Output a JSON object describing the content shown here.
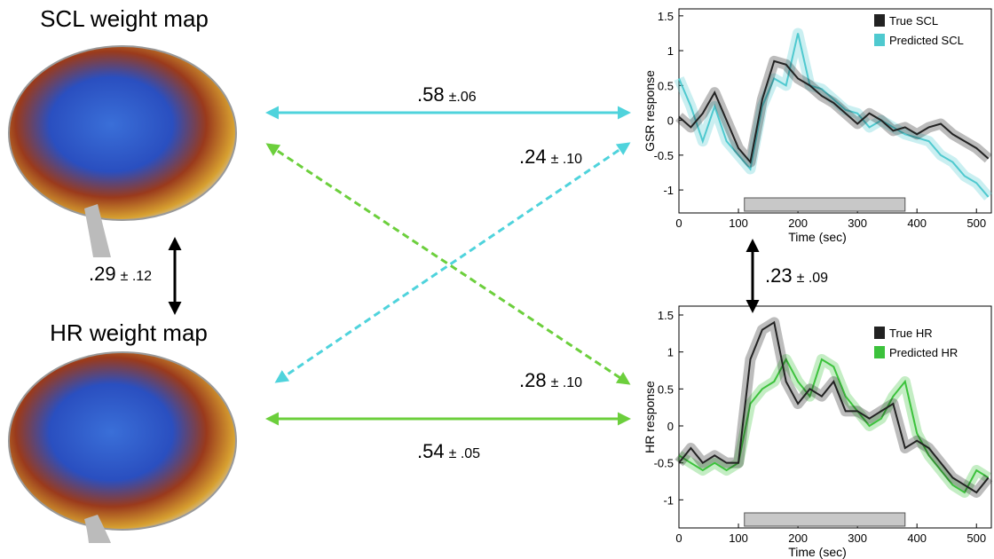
{
  "diagram": {
    "maps": [
      "SCL weight map",
      "HR weight map"
    ],
    "correlations": [
      {
        "value": ".58",
        "error": "±.06"
      },
      {
        "value": ".24",
        "error": "± .10"
      },
      {
        "value": ".28",
        "error": "± .10"
      },
      {
        "value": ".54",
        "error": "± .05"
      },
      {
        "value": ".29",
        "error": "± .12"
      },
      {
        "value": ".23",
        "error": "± .09"
      }
    ]
  },
  "chart_data": [
    {
      "type": "line",
      "y_label": "GSR response",
      "x_label": "Time (sec)",
      "x": [
        0,
        20,
        40,
        60,
        80,
        100,
        120,
        140,
        160,
        180,
        200,
        220,
        240,
        260,
        280,
        300,
        320,
        340,
        360,
        380,
        400,
        420,
        440,
        460,
        480,
        500,
        520
      ],
      "series": [
        {
          "name": "True SCL",
          "color": "#222222",
          "values": [
            0.05,
            -0.1,
            0.1,
            0.4,
            0.0,
            -0.4,
            -0.6,
            0.3,
            0.85,
            0.8,
            0.6,
            0.5,
            0.35,
            0.25,
            0.1,
            -0.05,
            0.1,
            0.0,
            -0.15,
            -0.1,
            -0.2,
            -0.1,
            -0.05,
            -0.2,
            -0.3,
            -0.4,
            -0.55
          ]
        },
        {
          "name": "Predicted SCL",
          "color": "#4fc9cf",
          "values": [
            0.6,
            0.2,
            -0.3,
            0.2,
            -0.3,
            -0.5,
            -0.7,
            0.2,
            0.6,
            0.5,
            1.25,
            0.5,
            0.45,
            0.3,
            0.15,
            0.1,
            -0.1,
            0.0,
            -0.1,
            -0.2,
            -0.25,
            -0.3,
            -0.5,
            -0.6,
            -0.8,
            -0.9,
            -1.1
          ]
        }
      ],
      "highlight": [
        110,
        380
      ],
      "xlim": [
        0,
        525
      ],
      "xticks": [
        0,
        100,
        200,
        300,
        400,
        500
      ],
      "ylim": [
        -1.33,
        1.6
      ],
      "yticks": [
        -1,
        -0.5,
        0,
        0.5,
        1,
        1.5
      ]
    },
    {
      "type": "line",
      "y_label": "HR response",
      "x_label": "Time (sec)",
      "x": [
        0,
        20,
        40,
        60,
        80,
        100,
        120,
        140,
        160,
        180,
        200,
        220,
        240,
        260,
        280,
        300,
        320,
        340,
        360,
        380,
        400,
        420,
        440,
        460,
        480,
        500,
        520
      ],
      "series": [
        {
          "name": "True HR",
          "color": "#222222",
          "values": [
            -0.5,
            -0.3,
            -0.5,
            -0.4,
            -0.5,
            -0.5,
            0.9,
            1.3,
            1.4,
            0.6,
            0.3,
            0.5,
            0.4,
            0.6,
            0.2,
            0.2,
            0.1,
            0.2,
            0.3,
            -0.3,
            -0.2,
            -0.3,
            -0.5,
            -0.7,
            -0.8,
            -0.9,
            -0.7
          ]
        },
        {
          "name": "Predicted HR",
          "color": "#3cc23c",
          "values": [
            -0.4,
            -0.5,
            -0.6,
            -0.5,
            -0.6,
            -0.5,
            0.3,
            0.5,
            0.6,
            0.9,
            0.6,
            0.4,
            0.9,
            0.8,
            0.4,
            0.2,
            0.0,
            0.1,
            0.4,
            0.6,
            -0.1,
            -0.4,
            -0.6,
            -0.8,
            -0.9,
            -0.6,
            -0.7
          ]
        }
      ],
      "highlight": [
        110,
        380
      ],
      "xlim": [
        0,
        525
      ],
      "xticks": [
        0,
        100,
        200,
        300,
        400,
        500
      ],
      "ylim": [
        -1.38,
        1.62
      ],
      "yticks": [
        -1,
        -0.5,
        0,
        0.5,
        1,
        1.5
      ]
    }
  ]
}
